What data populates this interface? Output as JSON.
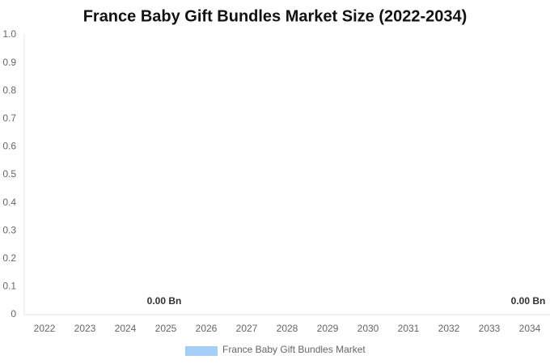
{
  "chart_data": {
    "type": "bar",
    "title": "France Baby Gift Bundles Market Size (2022-2034)",
    "categories": [
      "2022",
      "2023",
      "2024",
      "2025",
      "2026",
      "2027",
      "2028",
      "2029",
      "2030",
      "2031",
      "2032",
      "2033",
      "2034"
    ],
    "series": [
      {
        "name": "France Baby Gift Bundles Market",
        "color": "#a3cff7",
        "values": [
          0,
          0,
          0,
          0,
          0,
          0,
          0,
          0,
          0,
          0,
          0,
          0,
          0
        ],
        "value_labels": [
          null,
          null,
          null,
          "0.00 Bn",
          null,
          null,
          null,
          null,
          null,
          null,
          null,
          null,
          "0.00 Bn"
        ]
      }
    ],
    "ylim": [
      0,
      1
    ],
    "yticks": [
      0,
      0.1,
      0.2,
      0.3,
      0.4,
      0.5,
      0.6,
      0.7,
      0.8,
      0.9,
      {
        "value": 1,
        "label": "1.0"
      }
    ],
    "grid": false
  }
}
